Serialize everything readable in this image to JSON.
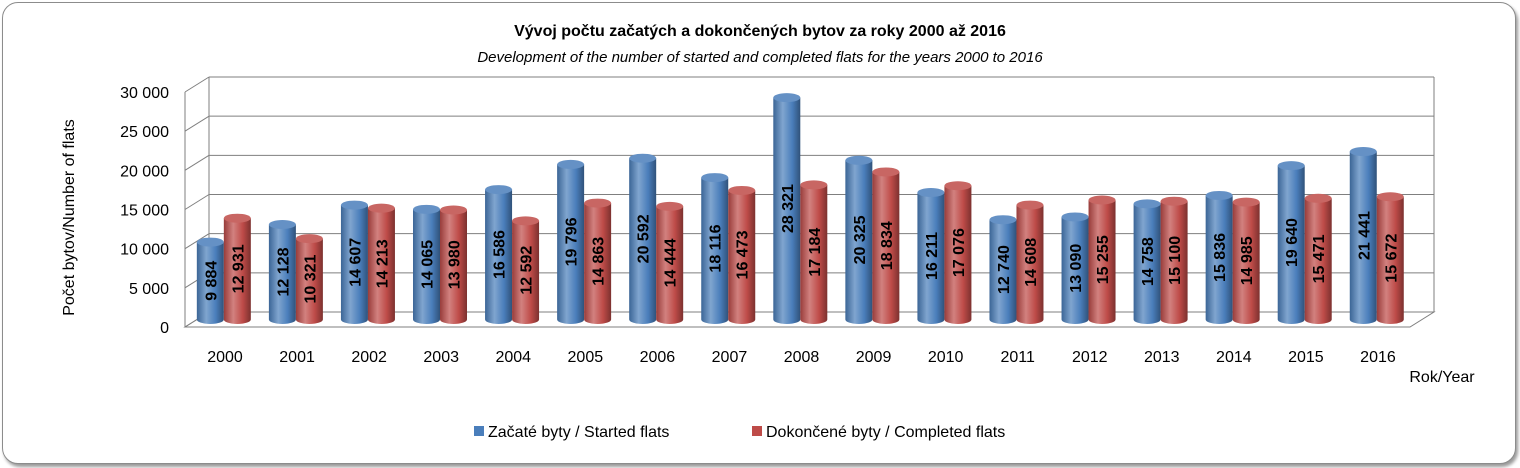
{
  "chart_data": {
    "type": "bar",
    "title": "Vývoj počtu začatých a dokončených bytov za roky 2000 až 2016",
    "subtitle": "Development of the number of started and completed flats for the years 2000 to 2016",
    "xlabel": "Rok/Year",
    "ylabel": "Počet bytov/Number of flats",
    "ylim": [
      0,
      30000
    ],
    "yticks": [
      0,
      5000,
      10000,
      15000,
      20000,
      25000,
      30000
    ],
    "ytick_labels": [
      "0",
      "5 000",
      "10 000",
      "15 000",
      "20 000",
      "25 000",
      "30 000"
    ],
    "categories": [
      "2000",
      "2001",
      "2002",
      "2003",
      "2004",
      "2005",
      "2006",
      "2007",
      "2008",
      "2009",
      "2010",
      "2011",
      "2012",
      "2013",
      "2014",
      "2015",
      "2016"
    ],
    "series": [
      {
        "name": "Začaté byty / Started flats",
        "color": "#4a7ebb",
        "values": [
          9884,
          12128,
          14607,
          14065,
          16586,
          19796,
          20592,
          18116,
          28321,
          20325,
          16211,
          12740,
          13090,
          14758,
          15836,
          19640,
          21441
        ],
        "labels": [
          "9 884",
          "12 128",
          "14 607",
          "14 065",
          "16 586",
          "19 796",
          "20 592",
          "18 116",
          "28 321",
          "20 325",
          "16 211",
          "12 740",
          "13 090",
          "14 758",
          "15 836",
          "19 640",
          "21 441"
        ]
      },
      {
        "name": "Dokončené byty / Completed flats",
        "color": "#be4b48",
        "values": [
          12931,
          10321,
          14213,
          13980,
          12592,
          14863,
          14444,
          16473,
          17184,
          18834,
          17076,
          14608,
          15255,
          15100,
          14985,
          15471,
          15672
        ],
        "labels": [
          "12 931",
          "10 321",
          "14 213",
          "13 980",
          "12 592",
          "14 863",
          "14 444",
          "16 473",
          "17 184",
          "18 834",
          "17 076",
          "14 608",
          "15 255",
          "15 100",
          "14 985",
          "15 471",
          "15 672"
        ]
      }
    ],
    "grid": true,
    "legend": "bottom"
  }
}
